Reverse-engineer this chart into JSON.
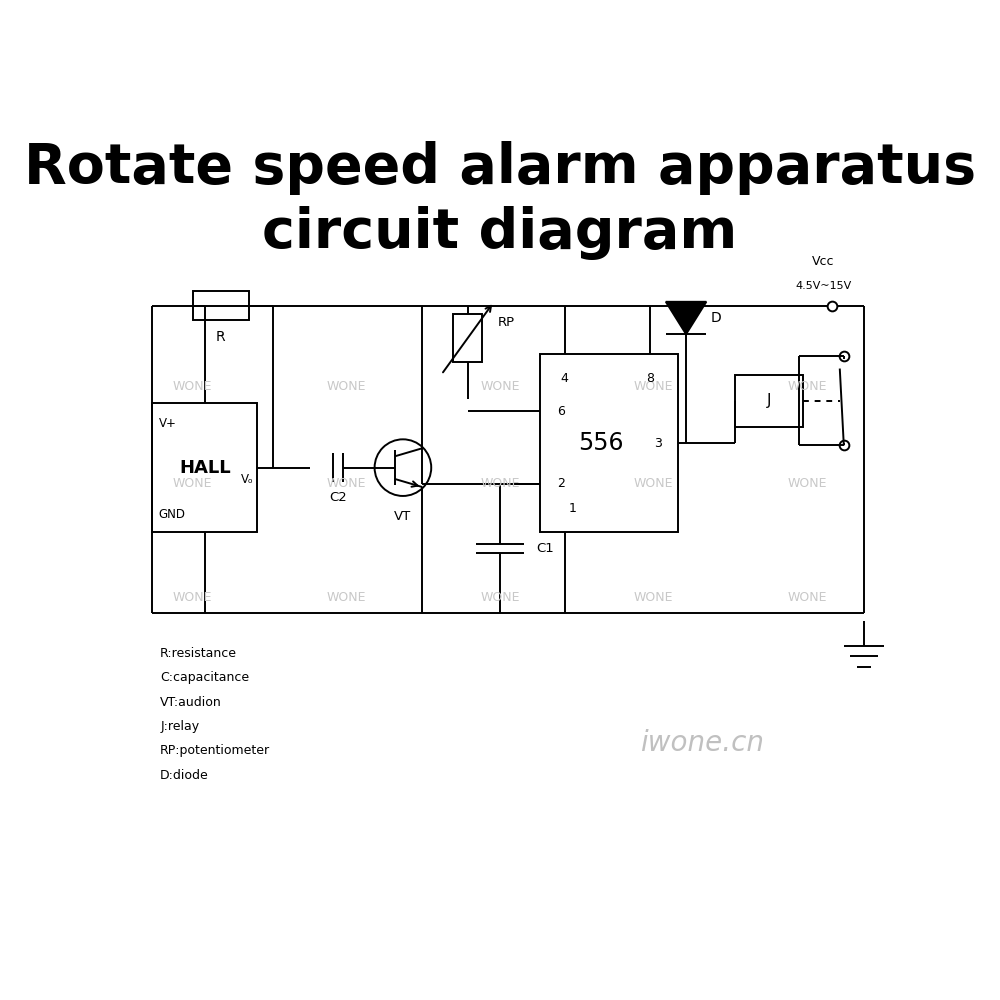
{
  "title_line1": "Rotate speed alarm apparatus",
  "title_line2": "circuit diagram",
  "title_fontsize": 40,
  "title_fontweight": "bold",
  "background_color": "#ffffff",
  "line_color": "#000000",
  "watermark_color": "#c8c8c8",
  "watermark_text": "WONE",
  "vcc_label": "Vcc",
  "vcc_voltage": "4.5V~15V",
  "ic_label": "556",
  "hall_label": "HALL",
  "legend_lines": [
    "R:resistance",
    "C:capacitance",
    "VT:audion",
    "J:relay",
    "RP:potentiometer",
    "D:diode"
  ],
  "watermark_label": "iwone.cn"
}
